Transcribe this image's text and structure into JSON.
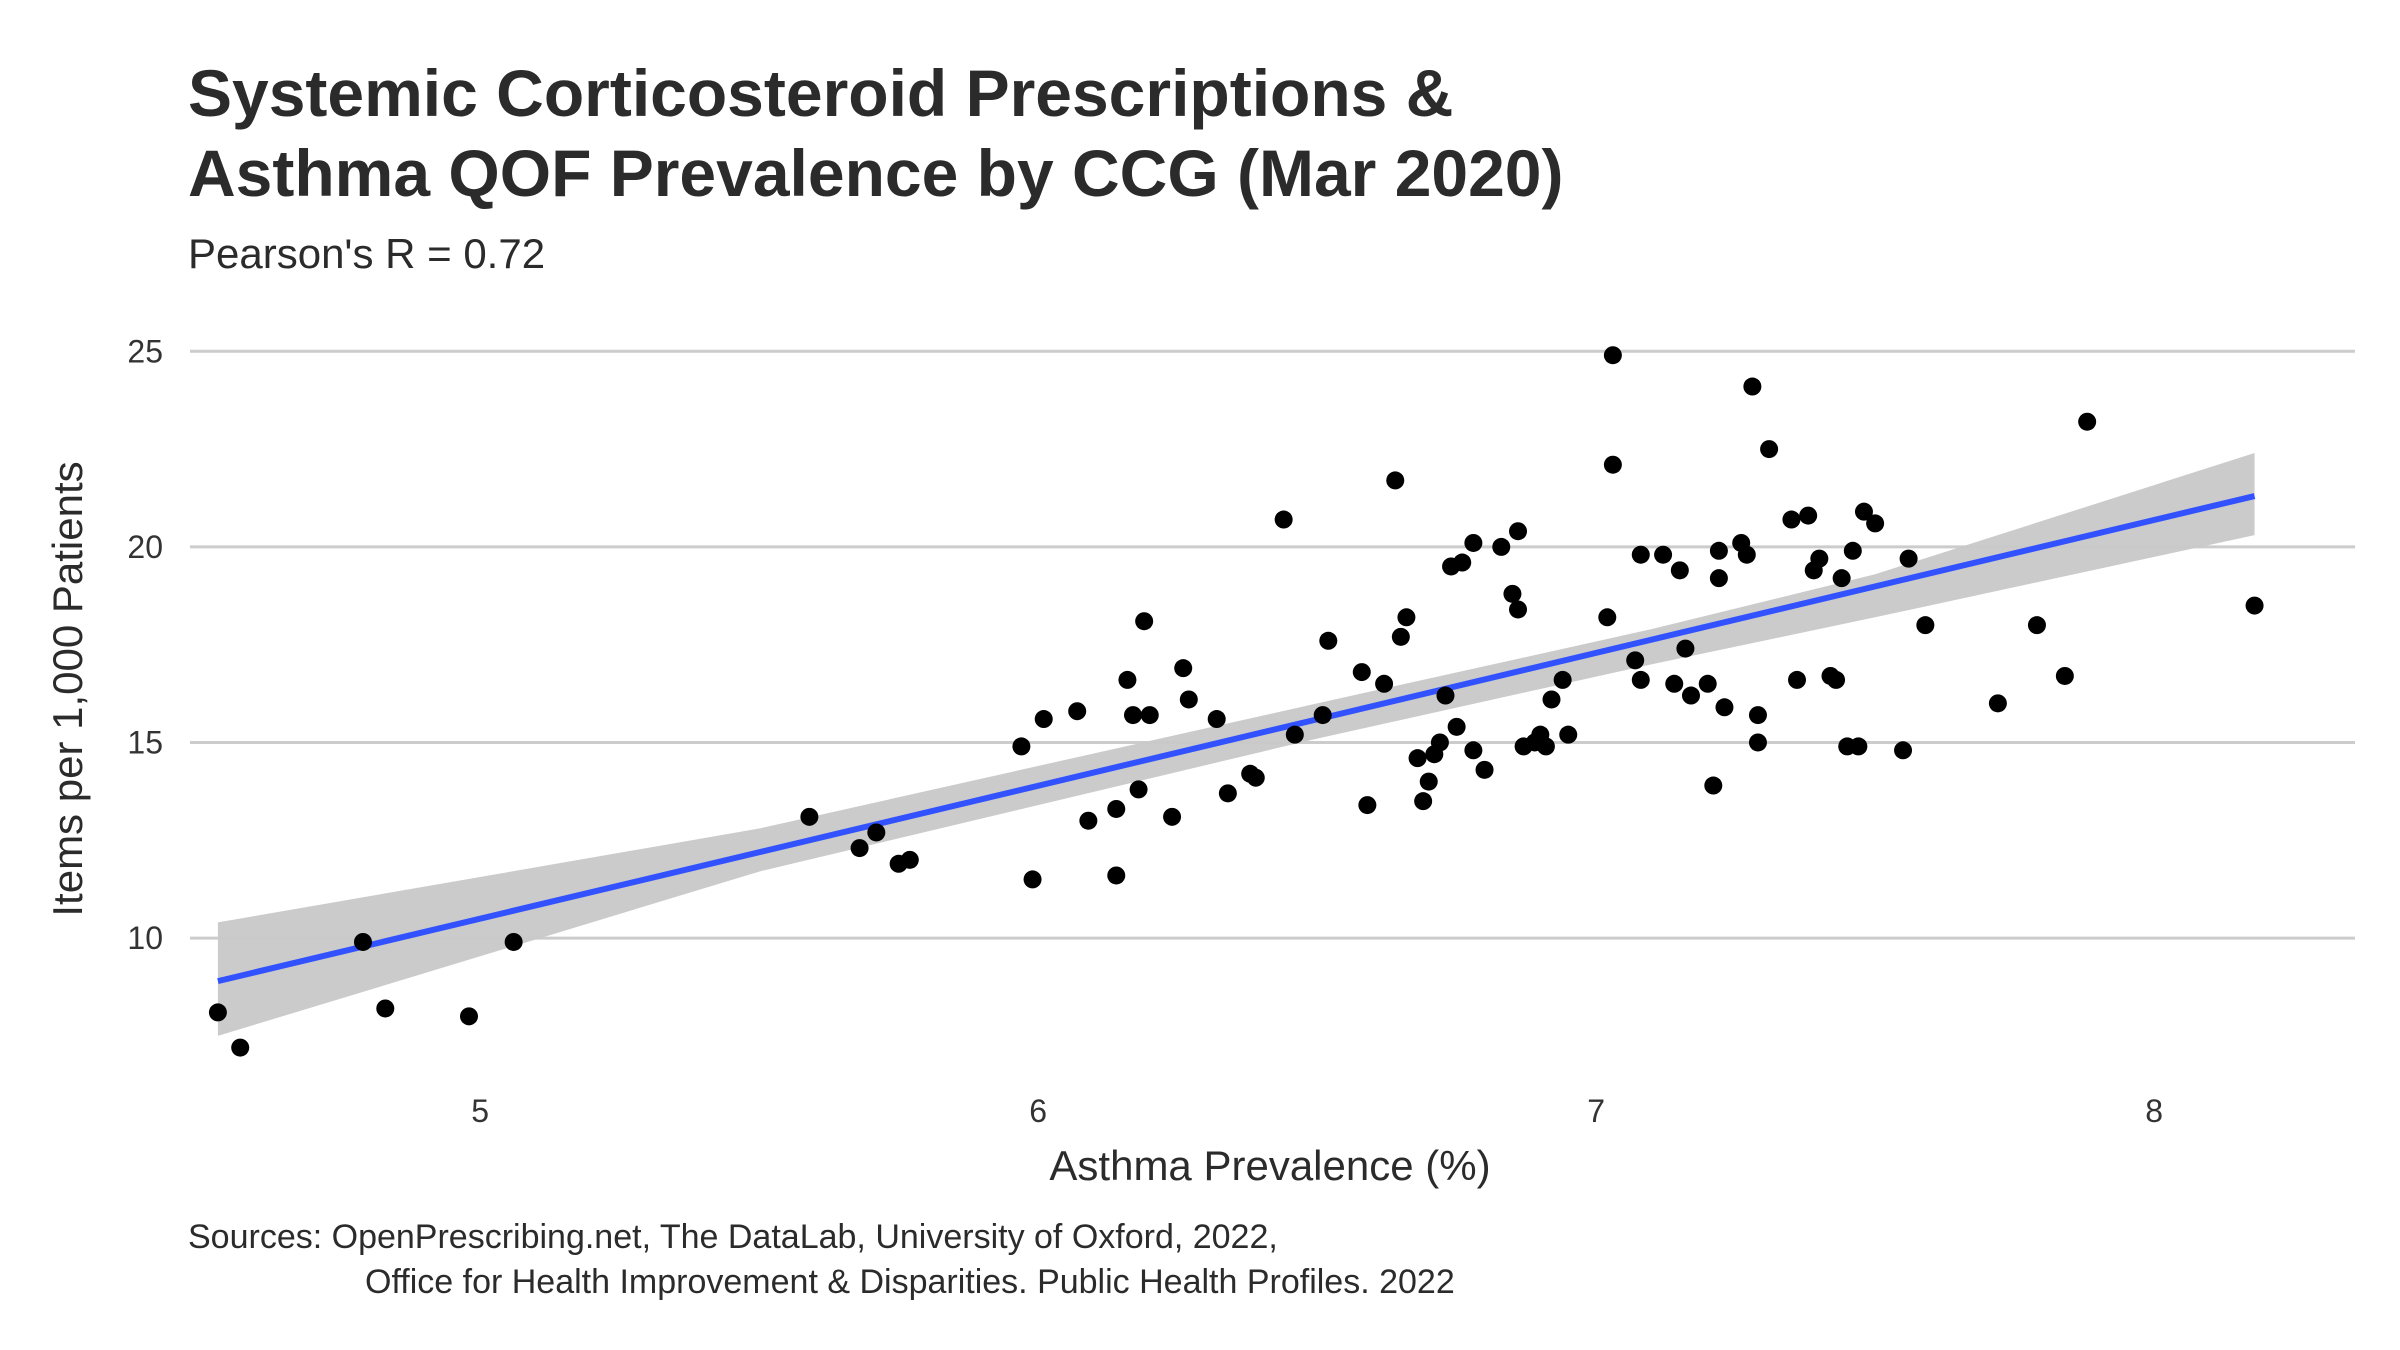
{
  "chart_data": {
    "type": "scatter",
    "title_lines": [
      "Systemic Corticosteroid Prescriptions &",
      "Asthma QOF Prevalence by CCG (Mar 2020)"
    ],
    "subtitle": "Pearson's R =  0.72",
    "xlabel": "Asthma Prevalence (%)",
    "ylabel": "Items per 1,000 Patients",
    "caption_lines": [
      "Sources: OpenPrescribing.net, The DataLab, University of Oxford, 2022,",
      "Office for Health Improvement & Disparities. Public Health Profiles. 2022"
    ],
    "xlim": [
      4.48,
      8.36
    ],
    "ylim": [
      6.5,
      25.8
    ],
    "x_ticks": [
      5,
      6,
      7,
      8
    ],
    "y_ticks": [
      10,
      15,
      20,
      25
    ],
    "grid": "horizontal major",
    "colors": {
      "points": "#000000",
      "trend": "#3352ff",
      "band": "#c8c8c8",
      "grid": "#cccccc"
    },
    "trend_line": {
      "x": [
        4.53,
        8.18
      ],
      "y": [
        8.9,
        21.3
      ]
    },
    "confidence_band": {
      "x": [
        4.53,
        5.5,
        6.5,
        7.1,
        7.5,
        8.18
      ],
      "lower": [
        7.5,
        11.7,
        15.1,
        17.0,
        18.2,
        20.3
      ],
      "upper": [
        10.4,
        12.8,
        16.0,
        17.9,
        19.3,
        22.4
      ]
    },
    "points": [
      [
        4.53,
        8.1
      ],
      [
        4.57,
        7.2
      ],
      [
        4.79,
        9.9
      ],
      [
        4.83,
        8.2
      ],
      [
        4.98,
        8.0
      ],
      [
        5.06,
        9.9
      ],
      [
        5.59,
        13.1
      ],
      [
        5.68,
        12.3
      ],
      [
        5.71,
        12.7
      ],
      [
        5.75,
        11.9
      ],
      [
        5.77,
        12.0
      ],
      [
        5.97,
        14.9
      ],
      [
        5.99,
        11.5
      ],
      [
        6.01,
        15.6
      ],
      [
        6.07,
        15.8
      ],
      [
        6.09,
        13.0
      ],
      [
        6.14,
        11.6
      ],
      [
        6.14,
        13.3
      ],
      [
        6.16,
        16.6
      ],
      [
        6.17,
        15.7
      ],
      [
        6.18,
        13.8
      ],
      [
        6.19,
        18.1
      ],
      [
        6.2,
        15.7
      ],
      [
        6.24,
        13.1
      ],
      [
        6.26,
        16.9
      ],
      [
        6.27,
        16.1
      ],
      [
        6.32,
        15.6
      ],
      [
        6.34,
        13.7
      ],
      [
        6.38,
        14.2
      ],
      [
        6.39,
        14.1
      ],
      [
        6.44,
        20.7
      ],
      [
        6.46,
        15.2
      ],
      [
        6.51,
        15.7
      ],
      [
        6.52,
        17.6
      ],
      [
        6.58,
        16.8
      ],
      [
        6.59,
        13.4
      ],
      [
        6.62,
        16.5
      ],
      [
        6.64,
        21.7
      ],
      [
        6.65,
        17.7
      ],
      [
        6.66,
        18.2
      ],
      [
        6.68,
        14.6
      ],
      [
        6.69,
        13.5
      ],
      [
        6.7,
        14.0
      ],
      [
        6.71,
        14.7
      ],
      [
        6.72,
        15.0
      ],
      [
        6.73,
        16.2
      ],
      [
        6.74,
        19.5
      ],
      [
        6.75,
        15.4
      ],
      [
        6.76,
        19.6
      ],
      [
        6.78,
        14.8
      ],
      [
        6.78,
        20.1
      ],
      [
        6.8,
        14.3
      ],
      [
        6.83,
        20.0
      ],
      [
        6.85,
        18.8
      ],
      [
        6.86,
        18.4
      ],
      [
        6.86,
        20.4
      ],
      [
        6.87,
        14.9
      ],
      [
        6.89,
        15.0
      ],
      [
        6.9,
        15.2
      ],
      [
        6.91,
        14.9
      ],
      [
        6.92,
        16.1
      ],
      [
        6.94,
        16.6
      ],
      [
        6.95,
        15.2
      ],
      [
        7.02,
        18.2
      ],
      [
        7.03,
        24.9
      ],
      [
        7.03,
        22.1
      ],
      [
        7.07,
        17.1
      ],
      [
        7.08,
        16.6
      ],
      [
        7.08,
        19.8
      ],
      [
        7.12,
        19.8
      ],
      [
        7.14,
        16.5
      ],
      [
        7.15,
        19.4
      ],
      [
        7.16,
        17.4
      ],
      [
        7.17,
        16.2
      ],
      [
        7.2,
        16.5
      ],
      [
        7.21,
        13.9
      ],
      [
        7.22,
        19.2
      ],
      [
        7.22,
        19.9
      ],
      [
        7.23,
        15.9
      ],
      [
        7.26,
        20.1
      ],
      [
        7.27,
        19.8
      ],
      [
        7.28,
        24.1
      ],
      [
        7.29,
        15.7
      ],
      [
        7.29,
        15.0
      ],
      [
        7.31,
        22.5
      ],
      [
        7.35,
        20.7
      ],
      [
        7.36,
        16.6
      ],
      [
        7.38,
        20.8
      ],
      [
        7.39,
        19.4
      ],
      [
        7.4,
        19.7
      ],
      [
        7.42,
        16.7
      ],
      [
        7.43,
        16.6
      ],
      [
        7.44,
        19.2
      ],
      [
        7.45,
        14.9
      ],
      [
        7.46,
        19.9
      ],
      [
        7.47,
        14.9
      ],
      [
        7.48,
        20.9
      ],
      [
        7.5,
        20.6
      ],
      [
        7.55,
        14.8
      ],
      [
        7.56,
        19.7
      ],
      [
        7.59,
        18.0
      ],
      [
        7.72,
        16.0
      ],
      [
        7.79,
        18.0
      ],
      [
        7.84,
        16.7
      ],
      [
        7.88,
        23.2
      ],
      [
        8.18,
        18.5
      ]
    ]
  }
}
